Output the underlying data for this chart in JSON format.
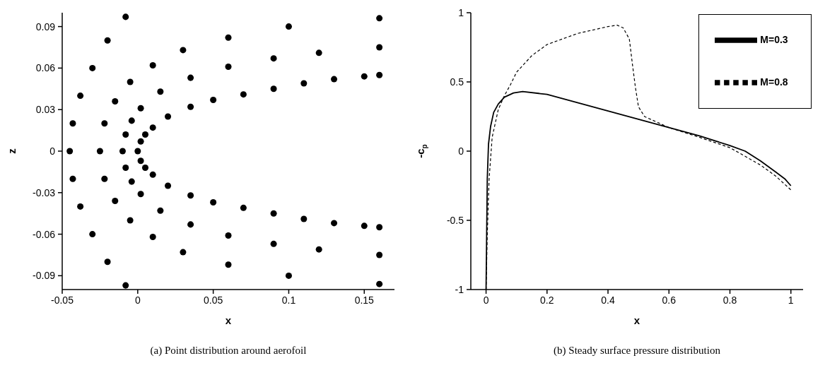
{
  "chart_data": [
    {
      "type": "scatter",
      "xlabel": "x",
      "ylabel": "z",
      "color": "#000000",
      "marker": "circle",
      "grid": false,
      "x": [
        0,
        0.002,
        0.005,
        0.01,
        0.02,
        0.035,
        0.05,
        0.07,
        0.09,
        0.11,
        0.13,
        0.15,
        0.16,
        0.002,
        0.005,
        0.01,
        0.02,
        0.035,
        0.05,
        0.07,
        0.09,
        0.11,
        0.13,
        0.15,
        0.16,
        -0.01,
        -0.008,
        -0.004,
        0.002,
        0.015,
        0.035,
        0.06,
        0.09,
        0.12,
        0.16,
        -0.008,
        -0.004,
        0.002,
        0.015,
        0.035,
        0.06,
        0.09,
        0.12,
        0.16,
        -0.025,
        -0.022,
        -0.015,
        -0.005,
        0.01,
        0.03,
        0.06,
        0.1,
        0.16,
        -0.022,
        -0.015,
        -0.005,
        0.01,
        0.03,
        0.06,
        0.1,
        0.16,
        -0.045,
        -0.043,
        -0.038,
        -0.03,
        -0.02,
        -0.008,
        -0.043,
        -0.038,
        -0.03,
        -0.02,
        -0.008
      ],
      "values": [
        0,
        0.007,
        0.012,
        0.017,
        0.025,
        0.032,
        0.037,
        0.041,
        0.045,
        0.049,
        0.052,
        0.054,
        0.055,
        -0.007,
        -0.012,
        -0.017,
        -0.025,
        -0.032,
        -0.037,
        -0.041,
        -0.045,
        -0.049,
        -0.052,
        -0.054,
        -0.055,
        0,
        0.012,
        0.022,
        0.031,
        0.043,
        0.053,
        0.061,
        0.067,
        0.071,
        0.075,
        -0.012,
        -0.022,
        -0.031,
        -0.043,
        -0.053,
        -0.061,
        -0.067,
        -0.071,
        -0.075,
        0,
        0.02,
        0.036,
        0.05,
        0.062,
        0.073,
        0.082,
        0.09,
        0.096,
        -0.02,
        -0.036,
        -0.05,
        -0.062,
        -0.073,
        -0.082,
        -0.09,
        -0.096,
        0,
        0.02,
        0.04,
        0.06,
        0.08,
        0.097,
        -0.02,
        -0.04,
        -0.06,
        -0.08,
        -0.097
      ],
      "xlim": [
        -0.05,
        0.17
      ],
      "xticks": [
        -0.05,
        0,
        0.05,
        0.1,
        0.15
      ],
      "ylim": [
        -0.1,
        0.1
      ],
      "yticks": [
        -0.09,
        -0.06,
        -0.03,
        0,
        0.03,
        0.06,
        0.09
      ],
      "annotations": [
        "(a) Point distribution around aerofoil"
      ]
    },
    {
      "type": "line",
      "xlabel": "x",
      "ylabel": "-c$_{p}$",
      "marker": "none",
      "grid": false,
      "legend": "top right",
      "series": [
        {
          "name": "M=0.3",
          "color": "#000000",
          "line_style": "solid",
          "x": [
            0,
            0.002,
            0.004,
            0.008,
            0.015,
            0.025,
            0.04,
            0.06,
            0.09,
            0.12,
            0.2,
            0.3,
            0.4,
            0.5,
            0.6,
            0.7,
            0.8,
            0.85,
            0.9,
            0.95,
            0.98,
            1.0
          ],
          "values": [
            -1,
            -0.6,
            -0.2,
            0.05,
            0.18,
            0.28,
            0.34,
            0.39,
            0.42,
            0.43,
            0.41,
            0.35,
            0.29,
            0.23,
            0.17,
            0.11,
            0.04,
            0.0,
            -0.07,
            -0.15,
            -0.2,
            -0.25
          ]
        },
        {
          "name": "M=0.8",
          "color": "#000000",
          "line_style": "dashed",
          "x": [
            0,
            0.004,
            0.01,
            0.02,
            0.04,
            0.06,
            0.08,
            0.1,
            0.15,
            0.2,
            0.3,
            0.4,
            0.43,
            0.45,
            0.47,
            0.48,
            0.49,
            0.5,
            0.52,
            0.55,
            0.6,
            0.7,
            0.8,
            0.9,
            0.95,
            1.0
          ],
          "values": [
            -1,
            -0.6,
            -0.2,
            0.1,
            0.3,
            0.4,
            0.48,
            0.57,
            0.69,
            0.77,
            0.85,
            0.9,
            0.91,
            0.89,
            0.81,
            0.63,
            0.46,
            0.32,
            0.25,
            0.22,
            0.17,
            0.1,
            0.025,
            -0.1,
            -0.18,
            -0.28
          ]
        }
      ],
      "xlim": [
        -0.05,
        1.04
      ],
      "xticks": [
        0,
        0.2,
        0.4,
        0.6,
        0.8,
        1
      ],
      "ylim": [
        -1,
        1
      ],
      "yticks": [
        -1,
        -0.5,
        0,
        0.5,
        1
      ],
      "annotations": [
        "(b) Steady surface pressure distribution"
      ]
    }
  ]
}
